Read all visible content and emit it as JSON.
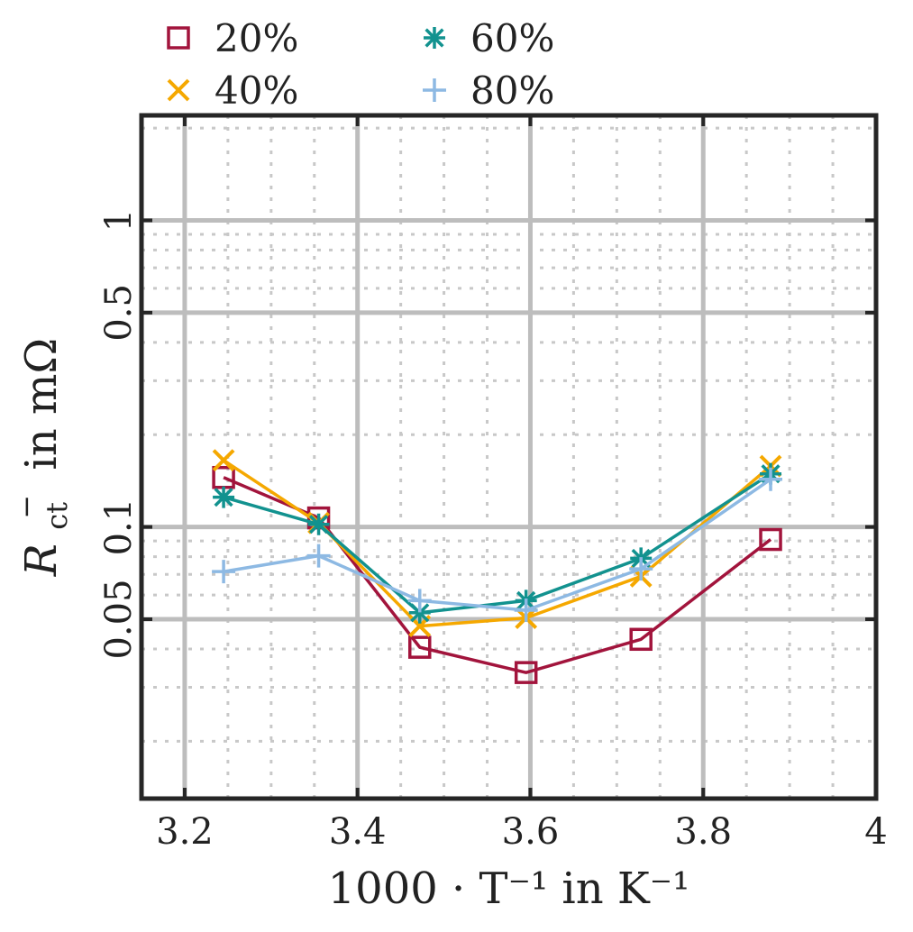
{
  "chart_data": {
    "type": "line",
    "xlabel": "1000 · T⁻¹ in K⁻¹",
    "ylabel_main": "R",
    "ylabel_sub": "ct",
    "ylabel_sup": "−",
    "ylabel_rest": " in mΩ",
    "xlim": [
      3.15,
      4.0
    ],
    "ylim": [
      0.013,
      2.2
    ],
    "yscale": "log",
    "x_ticks": [
      3.2,
      3.4,
      3.6,
      3.8,
      4.0
    ],
    "x_tick_labels": [
      "3.2",
      "3.4",
      "3.6",
      "3.8",
      "4"
    ],
    "y_ticks": [
      0.05,
      0.1,
      0.5,
      1
    ],
    "y_tick_labels": [
      "0.05",
      "0.1",
      "0.5",
      "1"
    ],
    "grid": true,
    "legend_position": "top",
    "series": [
      {
        "name": "20%",
        "color": "#A2143C",
        "marker": "square",
        "x": [
          3.245,
          3.355,
          3.472,
          3.595,
          3.728,
          3.878
        ],
        "y": [
          0.145,
          0.107,
          0.0405,
          0.0335,
          0.043,
          0.091
        ]
      },
      {
        "name": "40%",
        "color": "#F5A800",
        "marker": "x",
        "x": [
          3.245,
          3.355,
          3.472,
          3.595,
          3.728,
          3.878
        ],
        "y": [
          0.165,
          0.103,
          0.0475,
          0.0505,
          0.069,
          0.158
        ]
      },
      {
        "name": "60%",
        "color": "#12928F",
        "marker": "asterisk",
        "x": [
          3.245,
          3.355,
          3.472,
          3.595,
          3.728,
          3.878
        ],
        "y": [
          0.125,
          0.102,
          0.0525,
          0.0575,
          0.079,
          0.149
        ]
      },
      {
        "name": "80%",
        "color": "#8DB9E3",
        "marker": "plus",
        "x": [
          3.245,
          3.355,
          3.472,
          3.595,
          3.728,
          3.878
        ],
        "y": [
          0.0715,
          0.0805,
          0.0575,
          0.0535,
          0.073,
          0.143
        ]
      }
    ]
  }
}
